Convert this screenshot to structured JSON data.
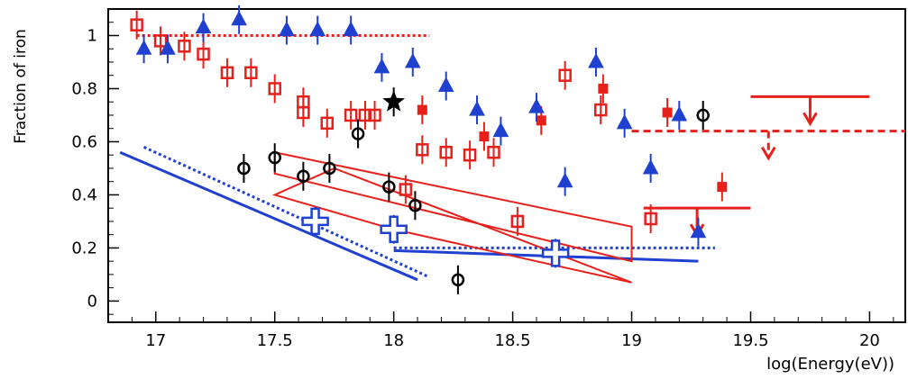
{
  "chart_data": {
    "type": "scatter",
    "title": "",
    "xlabel": "log(Energy(eV))",
    "ylabel": "Fraction of iron",
    "xlim": [
      16.8,
      20.15
    ],
    "ylim": [
      -0.08,
      1.1
    ],
    "x_ticks": [
      17,
      17.5,
      18,
      18.5,
      19,
      19.5,
      20
    ],
    "x_tick_labels": [
      "17",
      "17.5",
      "18",
      "18.5",
      "19",
      "19.5",
      "20"
    ],
    "y_ticks": [
      0,
      0.2,
      0.4,
      0.6,
      0.8,
      1
    ],
    "y_tick_labels": [
      "0",
      "0.2",
      "0.4",
      "0.6",
      "0.8",
      "1"
    ],
    "grid": false,
    "colors": {
      "red": "#e8201c",
      "blue": "#2040d0",
      "black": "#000000"
    },
    "series": [
      {
        "marker": "open-square",
        "color": "red",
        "points": [
          {
            "x": 16.92,
            "y": 1.04
          },
          {
            "x": 17.02,
            "y": 0.98
          },
          {
            "x": 17.12,
            "y": 0.96
          },
          {
            "x": 17.2,
            "y": 0.93
          },
          {
            "x": 17.3,
            "y": 0.86
          },
          {
            "x": 17.4,
            "y": 0.86
          },
          {
            "x": 17.5,
            "y": 0.8
          },
          {
            "x": 17.62,
            "y": 0.75
          },
          {
            "x": 17.62,
            "y": 0.71
          },
          {
            "x": 17.72,
            "y": 0.67
          },
          {
            "x": 17.82,
            "y": 0.7
          },
          {
            "x": 17.88,
            "y": 0.7
          },
          {
            "x": 17.92,
            "y": 0.7
          },
          {
            "x": 18.05,
            "y": 0.42
          },
          {
            "x": 18.12,
            "y": 0.57
          },
          {
            "x": 18.22,
            "y": 0.56
          },
          {
            "x": 18.32,
            "y": 0.55
          },
          {
            "x": 18.42,
            "y": 0.56
          },
          {
            "x": 18.52,
            "y": 0.3
          },
          {
            "x": 18.72,
            "y": 0.85
          },
          {
            "x": 18.87,
            "y": 0.72
          },
          {
            "x": 19.08,
            "y": 0.31
          }
        ]
      },
      {
        "marker": "filled-square",
        "color": "red",
        "points": [
          {
            "x": 18.12,
            "y": 0.72
          },
          {
            "x": 18.38,
            "y": 0.62
          },
          {
            "x": 18.62,
            "y": 0.68
          },
          {
            "x": 18.88,
            "y": 0.8
          },
          {
            "x": 19.15,
            "y": 0.71
          },
          {
            "x": 19.38,
            "y": 0.43
          }
        ]
      },
      {
        "marker": "filled-triangle",
        "color": "blue",
        "points": [
          {
            "x": 16.95,
            "y": 0.95
          },
          {
            "x": 17.05,
            "y": 0.95
          },
          {
            "x": 17.2,
            "y": 1.03
          },
          {
            "x": 17.35,
            "y": 1.06
          },
          {
            "x": 17.55,
            "y": 1.02
          },
          {
            "x": 17.68,
            "y": 1.02
          },
          {
            "x": 17.82,
            "y": 1.02
          },
          {
            "x": 17.95,
            "y": 0.88
          },
          {
            "x": 18.08,
            "y": 0.9
          },
          {
            "x": 18.22,
            "y": 0.81
          },
          {
            "x": 18.35,
            "y": 0.72
          },
          {
            "x": 18.45,
            "y": 0.64
          },
          {
            "x": 18.6,
            "y": 0.73
          },
          {
            "x": 18.72,
            "y": 0.45
          },
          {
            "x": 18.85,
            "y": 0.9
          },
          {
            "x": 18.97,
            "y": 0.67
          },
          {
            "x": 19.08,
            "y": 0.5
          },
          {
            "x": 19.2,
            "y": 0.7
          },
          {
            "x": 19.28,
            "y": 0.26
          }
        ]
      },
      {
        "marker": "open-cross",
        "color": "blue",
        "points": [
          {
            "x": 17.67,
            "y": 0.3
          },
          {
            "x": 18.0,
            "y": 0.27
          },
          {
            "x": 18.68,
            "y": 0.18
          }
        ]
      },
      {
        "marker": "open-circle",
        "color": "black",
        "points": [
          {
            "x": 17.37,
            "y": 0.5
          },
          {
            "x": 17.5,
            "y": 0.54
          },
          {
            "x": 17.62,
            "y": 0.47
          },
          {
            "x": 17.73,
            "y": 0.5
          },
          {
            "x": 17.85,
            "y": 0.63
          },
          {
            "x": 17.98,
            "y": 0.43
          },
          {
            "x": 18.09,
            "y": 0.36
          },
          {
            "x": 18.27,
            "y": 0.08
          },
          {
            "x": 19.3,
            "y": 0.7
          }
        ]
      },
      {
        "marker": "star",
        "color": "black",
        "points": [
          {
            "x": 18.0,
            "y": 0.75
          }
        ]
      }
    ],
    "upper_limits": [
      {
        "color": "red",
        "style": "solid",
        "x_range": [
          19.5,
          20.0
        ],
        "y": 0.77
      },
      {
        "color": "red",
        "style": "dashed",
        "x_range": [
          19.0,
          20.15
        ],
        "y": 0.64
      },
      {
        "color": "red",
        "style": "solid",
        "x_range": [
          19.05,
          19.5
        ],
        "y": 0.35
      }
    ],
    "bands": [
      {
        "color": "red",
        "corners": [
          [
            17.5,
            0.56
          ],
          [
            19.0,
            0.28
          ],
          [
            19.0,
            0.15
          ],
          [
            17.5,
            0.48
          ]
        ]
      },
      {
        "color": "red",
        "corners": [
          [
            17.75,
            0.5
          ],
          [
            19.0,
            0.07
          ],
          [
            18.0,
            0.27
          ],
          [
            17.5,
            0.4
          ]
        ]
      }
    ],
    "lines": [
      {
        "color": "blue",
        "style": "solid",
        "points": [
          [
            16.85,
            0.56
          ],
          [
            18.1,
            0.08
          ]
        ]
      },
      {
        "color": "blue",
        "style": "dotted",
        "points": [
          [
            16.95,
            0.58
          ],
          [
            18.15,
            0.09
          ]
        ]
      },
      {
        "color": "blue",
        "style": "solid",
        "points": [
          [
            18.0,
            0.19
          ],
          [
            19.28,
            0.15
          ]
        ]
      },
      {
        "color": "blue",
        "style": "dotted",
        "points": [
          [
            18.0,
            0.2
          ],
          [
            19.35,
            0.2
          ]
        ]
      },
      {
        "color": "red",
        "style": "dotted",
        "points": [
          [
            16.92,
            1.0
          ],
          [
            18.15,
            1.0
          ]
        ]
      }
    ]
  }
}
